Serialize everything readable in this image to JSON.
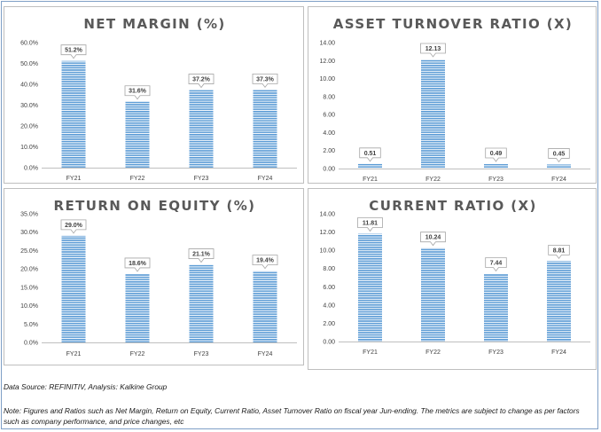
{
  "chart_data": [
    {
      "type": "bar",
      "title": "NET MARGIN (%)",
      "categories": [
        "FY21",
        "FY22",
        "FY23",
        "FY24"
      ],
      "values": [
        51.2,
        31.6,
        37.2,
        37.3
      ],
      "value_labels": [
        "51.2%",
        "31.6%",
        "37.2%",
        "37.3%"
      ],
      "yticks": [
        "0.0%",
        "10.0%",
        "20.0%",
        "30.0%",
        "40.0%",
        "50.0%",
        "60.0%"
      ],
      "ylim": [
        0,
        60
      ],
      "grid": false,
      "bar_color": "#5b9bd5"
    },
    {
      "type": "bar",
      "title": "ASSET TURNOVER RATIO (X)",
      "categories": [
        "FY21",
        "FY22",
        "FY23",
        "FY24"
      ],
      "values": [
        0.51,
        12.13,
        0.49,
        0.45
      ],
      "value_labels": [
        "0.51",
        "12.13",
        "0.49",
        "0.45"
      ],
      "yticks": [
        "0.00",
        "2.00",
        "4.00",
        "6.00",
        "8.00",
        "10.00",
        "12.00",
        "14.00"
      ],
      "ylim": [
        0,
        14
      ],
      "grid": false,
      "bar_color": "#5b9bd5"
    },
    {
      "type": "bar",
      "title": "RETURN ON EQUITY (%)",
      "categories": [
        "FY21",
        "FY22",
        "FY23",
        "FY24"
      ],
      "values": [
        29.0,
        18.6,
        21.1,
        19.4
      ],
      "value_labels": [
        "29.0%",
        "18.6%",
        "21.1%",
        "19.4%"
      ],
      "yticks": [
        "0.0%",
        "5.0%",
        "10.0%",
        "15.0%",
        "20.0%",
        "25.0%",
        "30.0%",
        "35.0%"
      ],
      "ylim": [
        0,
        35
      ],
      "grid": false,
      "bar_color": "#5b9bd5"
    },
    {
      "type": "bar",
      "title": "CURRENT RATIO (X)",
      "categories": [
        "FY21",
        "FY22",
        "FY23",
        "FY24"
      ],
      "values": [
        11.81,
        10.24,
        7.44,
        8.81
      ],
      "value_labels": [
        "11.81",
        "10.24",
        "7.44",
        "8.81"
      ],
      "yticks": [
        "0.00",
        "2.00",
        "4.00",
        "6.00",
        "8.00",
        "10.00",
        "12.00",
        "14.00"
      ],
      "ylim": [
        0,
        14
      ],
      "grid": false,
      "bar_color": "#5b9bd5"
    }
  ],
  "footer": {
    "source": "Data Source: REFINITIV, Analysis: Kalkine Group",
    "note": "Note: Figures and Ratios such as Net Margin, Return on Equity, Current Ratio, Asset Turnover Ratio on fiscal year Jun-ending. The metrics are subject to change as per factors such as company performance, and price changes, etc"
  }
}
